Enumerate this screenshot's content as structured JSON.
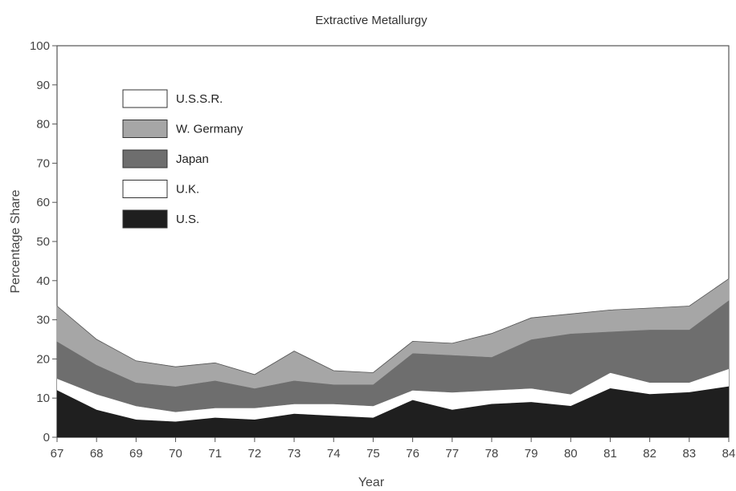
{
  "chart_data": {
    "type": "area",
    "stacked": true,
    "title": "Extractive Metallurgy",
    "xlabel": "Year",
    "ylabel": "Percentage Share",
    "ylim": [
      0,
      100
    ],
    "yticks": [
      0,
      10,
      20,
      30,
      40,
      50,
      60,
      70,
      80,
      90,
      100
    ],
    "x": [
      "67",
      "68",
      "69",
      "70",
      "71",
      "72",
      "73",
      "74",
      "75",
      "76",
      "77",
      "78",
      "79",
      "80",
      "81",
      "82",
      "83",
      "84"
    ],
    "legend_position": "top-left",
    "legend_order": [
      "U.S.S.R.",
      "W. Germany",
      "Japan",
      "U.K.",
      "U.S."
    ],
    "series": [
      {
        "name": "U.S.",
        "color": "#1f1f1f",
        "values": [
          12,
          7,
          4.5,
          4,
          5,
          4.5,
          6,
          5.5,
          5,
          9.5,
          7,
          8.5,
          9,
          8,
          12.5,
          11,
          11.5,
          13
        ]
      },
      {
        "name": "U.K.",
        "color": "#ffffff",
        "values": [
          3,
          4,
          3.5,
          2.5,
          2.5,
          3,
          2.5,
          3,
          3,
          2.5,
          4.5,
          3.5,
          3.5,
          3,
          4,
          3,
          2.5,
          4.5
        ]
      },
      {
        "name": "Japan",
        "color": "#6e6e6e",
        "values": [
          9.5,
          7.5,
          6,
          6.5,
          7,
          5,
          6,
          5,
          5.5,
          9.5,
          9.5,
          8.5,
          12.5,
          15.5,
          10.5,
          13.5,
          13.5,
          17.5
        ]
      },
      {
        "name": "W. Germany",
        "color": "#a6a6a6",
        "values": [
          9,
          6.5,
          5.5,
          5,
          4.5,
          3.5,
          7.5,
          3.5,
          3,
          3,
          3,
          6,
          5.5,
          5,
          5.5,
          5.5,
          6,
          5.5
        ]
      },
      {
        "name": "U.S.S.R.",
        "color": "#ffffff",
        "values": [
          0,
          0,
          0,
          0,
          0,
          0,
          0,
          0,
          0,
          0,
          0,
          0,
          0,
          0,
          0,
          0,
          0,
          0
        ]
      }
    ]
  }
}
